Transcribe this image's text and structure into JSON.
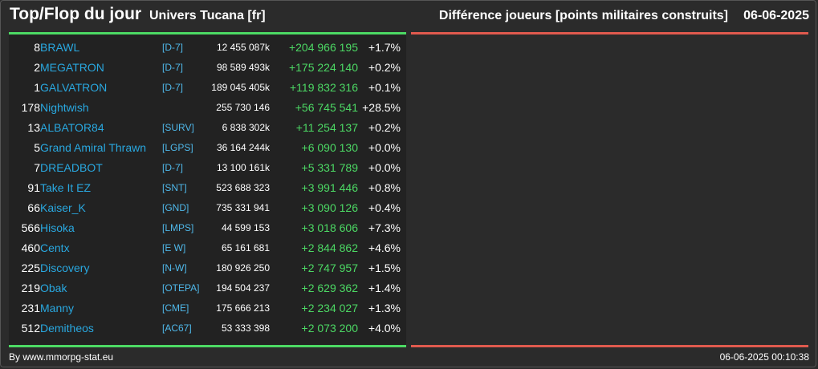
{
  "header": {
    "title": "Top/Flop du jour",
    "universe": "Univers Tucana [fr]",
    "metric": "Différence joueurs [points militaires construits]",
    "date": "06-06-2025"
  },
  "colors": {
    "background": "#2b2b2b",
    "left_panel": "#222222",
    "top_bar": "#4cd964",
    "flop_bar": "#e05a4e",
    "player_link": "#29a8e0",
    "alliance_link": "#4fb8ea",
    "gain": "#4cd964"
  },
  "top": [
    {
      "rank": "8",
      "player": "BRAWL",
      "alliance": "[D-7]",
      "points": "12 455 087k",
      "diff": "+204 966 195",
      "pct": "+1.7%"
    },
    {
      "rank": "2",
      "player": "MEGATRON",
      "alliance": "[D-7]",
      "points": "98 589 493k",
      "diff": "+175 224 140",
      "pct": "+0.2%"
    },
    {
      "rank": "1",
      "player": "GALVATRON",
      "alliance": "[D-7]",
      "points": "189 045 405k",
      "diff": "+119 832 316",
      "pct": "+0.1%"
    },
    {
      "rank": "178",
      "player": "Nightwish",
      "alliance": "",
      "points": "255 730 146",
      "diff": "+56 745 541",
      "pct": "+28.5%"
    },
    {
      "rank": "13",
      "player": "ALBATOR84",
      "alliance": "[SURV]",
      "points": "6 838 302k",
      "diff": "+11 254 137",
      "pct": "+0.2%"
    },
    {
      "rank": "5",
      "player": "Grand Amiral Thrawn",
      "alliance": "[LGPS]",
      "points": "36 164 244k",
      "diff": "+6 090 130",
      "pct": "+0.0%"
    },
    {
      "rank": "7",
      "player": "DREADBOT",
      "alliance": "[D-7]",
      "points": "13 100 161k",
      "diff": "+5 331 789",
      "pct": "+0.0%"
    },
    {
      "rank": "91",
      "player": "Take It EZ",
      "alliance": "[SNT]",
      "points": "523 688 323",
      "diff": "+3 991 446",
      "pct": "+0.8%"
    },
    {
      "rank": "66",
      "player": "Kaiser_K",
      "alliance": "[GND]",
      "points": "735 331 941",
      "diff": "+3 090 126",
      "pct": "+0.4%"
    },
    {
      "rank": "566",
      "player": "Hisoka",
      "alliance": "[LMPS]",
      "points": "44 599 153",
      "diff": "+3 018 606",
      "pct": "+7.3%"
    },
    {
      "rank": "460",
      "player": "Centx",
      "alliance": "[E W]",
      "points": "65 161 681",
      "diff": "+2 844 862",
      "pct": "+4.6%"
    },
    {
      "rank": "225",
      "player": "Discovery",
      "alliance": "[N-W]",
      "points": "180 926 250",
      "diff": "+2 747 957",
      "pct": "+1.5%"
    },
    {
      "rank": "219",
      "player": "Obak",
      "alliance": "[OTEPA]",
      "points": "194 504 237",
      "diff": "+2 629 362",
      "pct": "+1.4%"
    },
    {
      "rank": "231",
      "player": "Manny",
      "alliance": "[CME]",
      "points": "175 666 213",
      "diff": "+2 234 027",
      "pct": "+1.3%"
    },
    {
      "rank": "512",
      "player": "Demitheos",
      "alliance": "[AC67]",
      "points": "53 333 398",
      "diff": "+2 073 200",
      "pct": "+4.0%"
    }
  ],
  "footer": {
    "credit": "By www.mmorpg-stat.eu",
    "timestamp": "06-06-2025 00:10:38"
  }
}
